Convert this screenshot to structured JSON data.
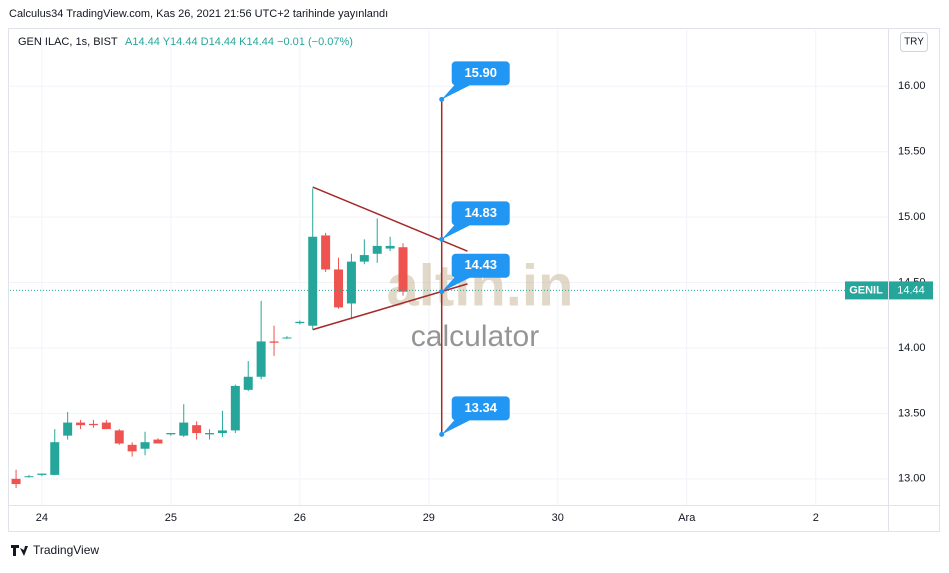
{
  "chart_data": {
    "type": "candlestick",
    "title": "Calculus34 TradingView.com, Kas 26, 2021 21:56 UTC+2 tarihinde yayınlandı",
    "legend_symbol": "GEN ILAC, 1s, BIST",
    "legend_values": "A14.44  Y14.44  D14.44  K14.44  −0.01 (−0.07%)",
    "currency": "TRY",
    "footer": "TradingView",
    "watermark": {
      "brand": "altin.in",
      "tagline": "calculator"
    },
    "up_color": "#26a69a",
    "down_color": "#ef5350",
    "open": [
      13.0,
      13.02,
      13.03,
      13.03,
      13.33,
      13.43,
      13.42,
      13.43,
      13.37,
      13.26,
      13.23,
      13.3,
      13.34,
      13.33,
      13.41,
      13.34,
      13.35,
      13.37,
      13.68,
      13.78,
      14.05,
      14.08,
      14.19,
      14.17,
      14.86,
      14.6,
      14.34,
      14.66,
      14.72,
      14.76,
      14.77
    ],
    "high": [
      13.07,
      13.03,
      13.04,
      13.38,
      13.51,
      13.45,
      13.45,
      13.45,
      13.38,
      13.28,
      13.36,
      13.31,
      13.35,
      13.57,
      13.44,
      13.38,
      13.52,
      13.72,
      13.9,
      14.36,
      14.17,
      14.09,
      14.21,
      15.22,
      14.88,
      14.69,
      14.72,
      14.83,
      14.99,
      14.85,
      14.8
    ],
    "low": [
      12.93,
      13.01,
      13.02,
      13.03,
      13.3,
      13.38,
      13.39,
      13.38,
      13.26,
      13.17,
      13.18,
      13.27,
      13.33,
      13.32,
      13.3,
      13.3,
      13.32,
      13.35,
      13.67,
      13.76,
      13.94,
      14.07,
      14.18,
      14.14,
      14.58,
      14.3,
      14.22,
      14.64,
      14.65,
      14.74,
      14.4
    ],
    "close": [
      12.96,
      13.02,
      13.04,
      13.28,
      13.43,
      13.41,
      13.41,
      13.38,
      13.27,
      13.21,
      13.28,
      13.27,
      13.35,
      13.43,
      13.35,
      13.35,
      13.37,
      13.71,
      13.78,
      14.05,
      14.04,
      14.08,
      14.2,
      14.85,
      14.6,
      14.31,
      14.66,
      14.71,
      14.78,
      14.78,
      14.43
    ],
    "xlim": [
      -0.47,
      67.6
    ],
    "xticks": [
      {
        "value": 2,
        "label": "24"
      },
      {
        "value": 12,
        "label": "25"
      },
      {
        "value": 22,
        "label": "26"
      },
      {
        "value": 32,
        "label": "29"
      },
      {
        "value": 42,
        "label": "30"
      },
      {
        "value": 52,
        "label": "Ara"
      },
      {
        "value": 62,
        "label": "2"
      }
    ],
    "ylim": [
      12.8,
      16.43
    ],
    "yticks": [
      {
        "value": 13,
        "label": "13.00"
      },
      {
        "value": 13.5,
        "label": "13.50"
      },
      {
        "value": 14,
        "label": "14.00"
      },
      {
        "value": 14.5,
        "label": "14.50"
      },
      {
        "value": 15,
        "label": "15.00"
      },
      {
        "value": 15.5,
        "label": "15.50"
      },
      {
        "value": 16,
        "label": "16.00"
      }
    ],
    "grid": true,
    "last_price": 14.44,
    "symbol_tag": "GENIL",
    "trendlines": [
      {
        "x": [
          23,
          35
        ],
        "y": [
          15.23,
          14.74
        ]
      },
      {
        "x": [
          23,
          35
        ],
        "y": [
          14.14,
          14.49
        ]
      }
    ],
    "callouts_x": 33,
    "callouts": [
      {
        "value": 15.9,
        "label": "15.90"
      },
      14.83,
      14.43,
      13.34
    ],
    "drawing_color": "#a52a2a",
    "callout_color": "#2196f3"
  }
}
